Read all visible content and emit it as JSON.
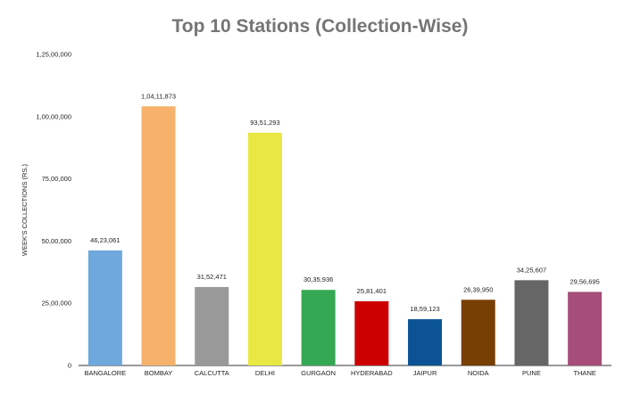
{
  "chart_data": {
    "type": "bar",
    "title": "Top 10 Stations (Collection-Wise)",
    "xlabel": "",
    "ylabel": "WEEK'S COLLECTIONS (RS.)",
    "ylim": [
      0,
      12500000
    ],
    "yticks": [
      0,
      2500000,
      5000000,
      7500000,
      10000000,
      12500000
    ],
    "ytick_labels": [
      "0",
      "25,00,000",
      "50,00,000",
      "75,00,000",
      "1,00,00,000",
      "1,25,00,000"
    ],
    "grid": false,
    "legend": "none",
    "categories": [
      "BANGALORE",
      "BOMBAY",
      "CALCUTTA",
      "DELHI",
      "GURGAON",
      "HYDERABAD",
      "JAIPUR",
      "NOIDA",
      "PUNE",
      "THANE"
    ],
    "values": [
      4623061,
      10411873,
      3152471,
      9351293,
      3035936,
      2581401,
      1859123,
      2639950,
      3425607,
      2956695
    ],
    "value_labels": [
      "46,23,061",
      "1,04,11,873",
      "31,52,471",
      "93,51,293",
      "30,35,936",
      "25,81,401",
      "18,59,123",
      "26,39,950",
      "34,25,607",
      "29,56,695"
    ],
    "colors": [
      "#6fa8dc",
      "#f6b26b",
      "#999999",
      "#e9e843",
      "#34a853",
      "#cc0000",
      "#0b5394",
      "#783f04",
      "#666666",
      "#a64d79"
    ]
  }
}
